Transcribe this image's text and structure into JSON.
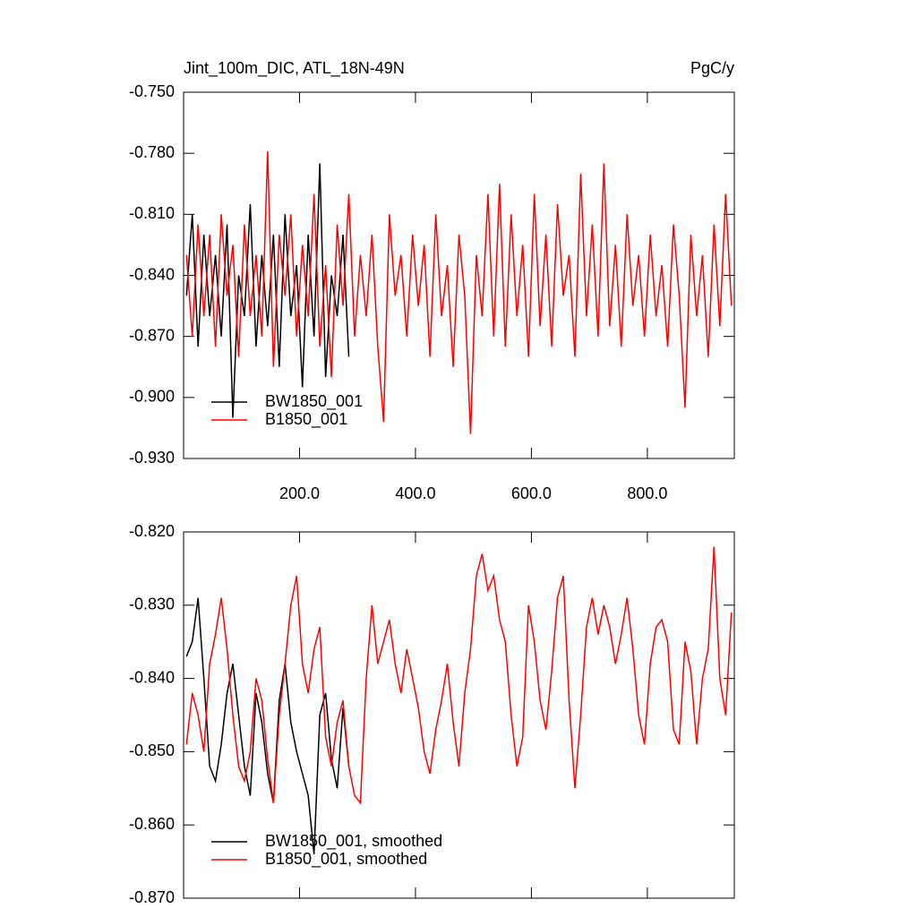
{
  "chart_data": [
    {
      "type": "line",
      "title": "Jint_100m_DIC, ATL_18N-49N",
      "title_right": "PgC/y",
      "xlim": [
        0,
        950
      ],
      "xticks": [
        {
          "value": 200,
          "label": "200.0"
        },
        {
          "value": 400,
          "label": "400.0"
        },
        {
          "value": 600,
          "label": "600.0"
        },
        {
          "value": 800,
          "label": "800.0"
        }
      ],
      "xtick_labels": true,
      "ylim": [
        -0.93,
        -0.75
      ],
      "yticks": [
        {
          "value": -0.93,
          "label": "-0.930"
        },
        {
          "value": -0.9,
          "label": "-0.900"
        },
        {
          "value": -0.87,
          "label": "-0.870"
        },
        {
          "value": -0.84,
          "label": "-0.840"
        },
        {
          "value": -0.81,
          "label": "-0.810"
        },
        {
          "value": -0.78,
          "label": "-0.780"
        },
        {
          "value": -0.75,
          "label": "-0.750"
        }
      ],
      "legend": "lower left",
      "series": [
        {
          "name": "BW1850_001",
          "color": "#000000",
          "x": [
            5,
            15,
            25,
            35,
            45,
            55,
            65,
            75,
            85,
            95,
            105,
            115,
            125,
            135,
            145,
            155,
            165,
            175,
            185,
            195,
            205,
            215,
            225,
            235,
            245,
            255,
            265,
            275,
            285
          ],
          "values": [
            -0.85,
            -0.81,
            -0.875,
            -0.82,
            -0.86,
            -0.83,
            -0.87,
            -0.815,
            -0.91,
            -0.84,
            -0.86,
            -0.805,
            -0.875,
            -0.83,
            -0.865,
            -0.82,
            -0.885,
            -0.81,
            -0.86,
            -0.835,
            -0.895,
            -0.82,
            -0.87,
            -0.785,
            -0.89,
            -0.84,
            -0.86,
            -0.82,
            -0.88
          ]
        },
        {
          "name": "B1850_001",
          "color": "#ff0000",
          "x": [
            5,
            15,
            25,
            35,
            45,
            55,
            65,
            75,
            85,
            95,
            105,
            115,
            125,
            135,
            145,
            155,
            165,
            175,
            185,
            195,
            205,
            215,
            225,
            235,
            245,
            255,
            265,
            275,
            285,
            295,
            305,
            315,
            325,
            335,
            345,
            355,
            365,
            375,
            385,
            395,
            405,
            415,
            425,
            435,
            445,
            455,
            465,
            475,
            485,
            495,
            505,
            515,
            525,
            535,
            545,
            555,
            565,
            575,
            585,
            595,
            605,
            615,
            625,
            635,
            645,
            655,
            665,
            675,
            685,
            695,
            705,
            715,
            725,
            735,
            745,
            755,
            765,
            775,
            785,
            795,
            805,
            815,
            825,
            835,
            845,
            855,
            865,
            875,
            885,
            895,
            905,
            915,
            925,
            935,
            945
          ],
          "values": [
            -0.83,
            -0.87,
            -0.815,
            -0.86,
            -0.82,
            -0.875,
            -0.81,
            -0.85,
            -0.825,
            -0.88,
            -0.815,
            -0.86,
            -0.83,
            -0.87,
            -0.779,
            -0.885,
            -0.82,
            -0.85,
            -0.81,
            -0.87,
            -0.825,
            -0.86,
            -0.8,
            -0.875,
            -0.835,
            -0.89,
            -0.815,
            -0.855,
            -0.8,
            -0.87,
            -0.83,
            -0.86,
            -0.82,
            -0.875,
            -0.912,
            -0.81,
            -0.85,
            -0.83,
            -0.87,
            -0.82,
            -0.855,
            -0.825,
            -0.88,
            -0.81,
            -0.86,
            -0.835,
            -0.885,
            -0.82,
            -0.85,
            -0.918,
            -0.83,
            -0.86,
            -0.8,
            -0.87,
            -0.795,
            -0.875,
            -0.81,
            -0.86,
            -0.825,
            -0.88,
            -0.8,
            -0.865,
            -0.82,
            -0.875,
            -0.805,
            -0.85,
            -0.83,
            -0.88,
            -0.79,
            -0.86,
            -0.815,
            -0.87,
            -0.785,
            -0.865,
            -0.825,
            -0.875,
            -0.81,
            -0.855,
            -0.83,
            -0.87,
            -0.82,
            -0.86,
            -0.835,
            -0.875,
            -0.815,
            -0.85,
            -0.905,
            -0.82,
            -0.86,
            -0.83,
            -0.88,
            -0.815,
            -0.865,
            -0.8,
            -0.855
          ]
        }
      ]
    },
    {
      "type": "line",
      "xlim": [
        0,
        950
      ],
      "xticks": [
        200,
        400,
        600,
        800
      ],
      "xtick_labels": false,
      "ylim": [
        -0.87,
        -0.82
      ],
      "yticks": [
        {
          "value": -0.87,
          "label": "-0.870"
        },
        {
          "value": -0.86,
          "label": "-0.860"
        },
        {
          "value": -0.85,
          "label": "-0.850"
        },
        {
          "value": -0.84,
          "label": "-0.840"
        },
        {
          "value": -0.83,
          "label": "-0.830"
        },
        {
          "value": -0.82,
          "label": "-0.820"
        }
      ],
      "legend": "lower left",
      "series": [
        {
          "name": "BW1850_001, smoothed",
          "color": "#000000",
          "x": [
            5,
            15,
            25,
            35,
            45,
            55,
            65,
            75,
            85,
            95,
            105,
            115,
            125,
            135,
            145,
            155,
            165,
            175,
            185,
            195,
            205,
            215,
            225,
            235,
            245,
            255,
            265,
            275,
            285
          ],
          "values": [
            -0.837,
            -0.835,
            -0.829,
            -0.84,
            -0.852,
            -0.854,
            -0.849,
            -0.842,
            -0.838,
            -0.845,
            -0.852,
            -0.856,
            -0.842,
            -0.846,
            -0.853,
            -0.857,
            -0.843,
            -0.838,
            -0.846,
            -0.85,
            -0.853,
            -0.856,
            -0.864,
            -0.845,
            -0.842,
            -0.851,
            -0.855,
            -0.844,
            -0.852
          ]
        },
        {
          "name": "B1850_001, smoothed",
          "color": "#ff0000",
          "x": [
            5,
            15,
            25,
            35,
            45,
            55,
            65,
            75,
            85,
            95,
            105,
            115,
            125,
            135,
            145,
            155,
            165,
            175,
            185,
            195,
            205,
            215,
            225,
            235,
            245,
            255,
            265,
            275,
            285,
            295,
            305,
            315,
            325,
            335,
            345,
            355,
            365,
            375,
            385,
            395,
            405,
            415,
            425,
            435,
            445,
            455,
            465,
            475,
            485,
            495,
            505,
            515,
            525,
            535,
            545,
            555,
            565,
            575,
            585,
            595,
            605,
            615,
            625,
            635,
            645,
            655,
            665,
            675,
            685,
            695,
            705,
            715,
            725,
            735,
            745,
            755,
            765,
            775,
            785,
            795,
            805,
            815,
            825,
            835,
            845,
            855,
            865,
            875,
            885,
            895,
            905,
            915,
            925,
            935,
            945
          ],
          "values": [
            -0.849,
            -0.842,
            -0.845,
            -0.85,
            -0.838,
            -0.834,
            -0.829,
            -0.836,
            -0.845,
            -0.852,
            -0.854,
            -0.85,
            -0.84,
            -0.843,
            -0.851,
            -0.857,
            -0.845,
            -0.838,
            -0.83,
            -0.826,
            -0.838,
            -0.842,
            -0.836,
            -0.833,
            -0.848,
            -0.852,
            -0.846,
            -0.843,
            -0.852,
            -0.856,
            -0.857,
            -0.84,
            -0.83,
            -0.838,
            -0.835,
            -0.832,
            -0.838,
            -0.842,
            -0.836,
            -0.84,
            -0.844,
            -0.85,
            -0.853,
            -0.847,
            -0.843,
            -0.838,
            -0.846,
            -0.852,
            -0.842,
            -0.836,
            -0.826,
            -0.823,
            -0.828,
            -0.826,
            -0.832,
            -0.835,
            -0.845,
            -0.852,
            -0.848,
            -0.83,
            -0.835,
            -0.843,
            -0.847,
            -0.839,
            -0.829,
            -0.826,
            -0.843,
            -0.855,
            -0.845,
            -0.833,
            -0.829,
            -0.834,
            -0.83,
            -0.833,
            -0.838,
            -0.834,
            -0.829,
            -0.836,
            -0.845,
            -0.849,
            -0.838,
            -0.833,
            -0.832,
            -0.835,
            -0.847,
            -0.849,
            -0.835,
            -0.839,
            -0.849,
            -0.84,
            -0.836,
            -0.822,
            -0.84,
            -0.845,
            -0.831
          ]
        }
      ]
    }
  ]
}
